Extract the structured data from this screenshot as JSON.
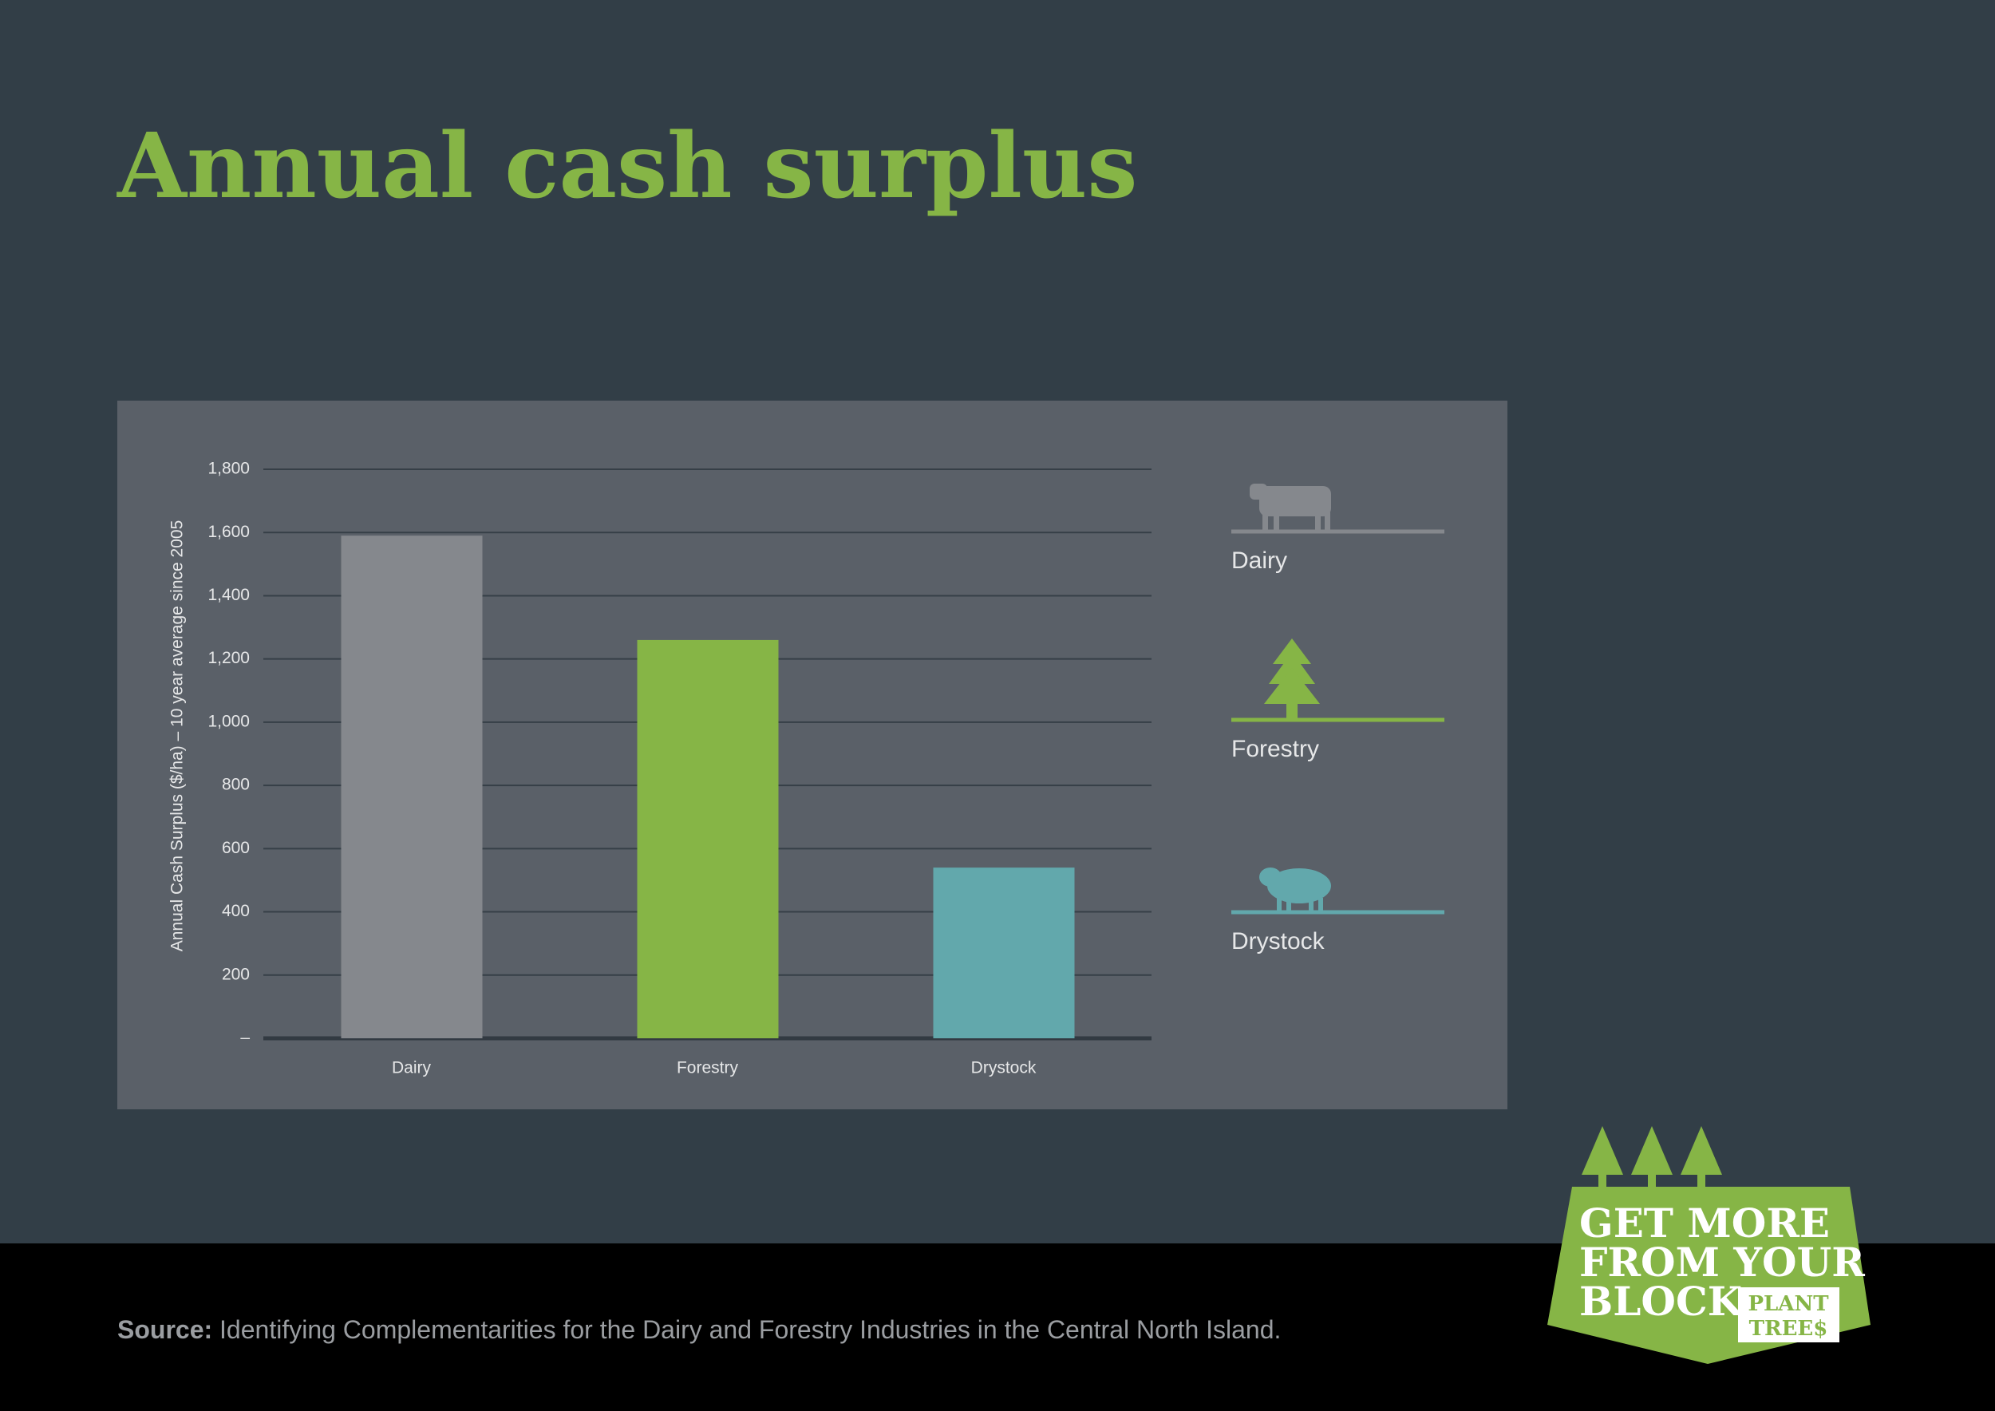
{
  "chart_data": {
    "type": "bar",
    "title": "Annual cash surplus",
    "y_label": "Annual Cash Surplus ($/ha) – 10 year average since 2005",
    "categories": [
      "Dairy",
      "Forestry",
      "Drystock"
    ],
    "values": [
      1590,
      1260,
      540
    ],
    "colors": [
      "#85888d",
      "#86b546",
      "#62a8ac"
    ],
    "ylim": [
      0,
      1800
    ],
    "yticks": [
      {
        "value": 0,
        "label": "–"
      },
      200,
      400,
      600,
      800,
      {
        "value": 1000,
        "label": "1,000"
      },
      {
        "value": 1200,
        "label": "1,200"
      },
      {
        "value": 1400,
        "label": "1,400"
      },
      {
        "value": 1600,
        "label": "1,600"
      },
      {
        "value": 1800,
        "label": "1,800"
      }
    ],
    "grid": true,
    "legend": "right"
  },
  "footer": {
    "source_label": "Source:",
    "source_text": "Identifying Complementarities for the Dairy and Forestry Industries in the Central North Island."
  },
  "logo": {
    "lines": [
      "GET MORE",
      "FROM YOUR",
      "BLOCK"
    ],
    "badge": [
      "PLANT",
      "TREE$"
    ]
  }
}
